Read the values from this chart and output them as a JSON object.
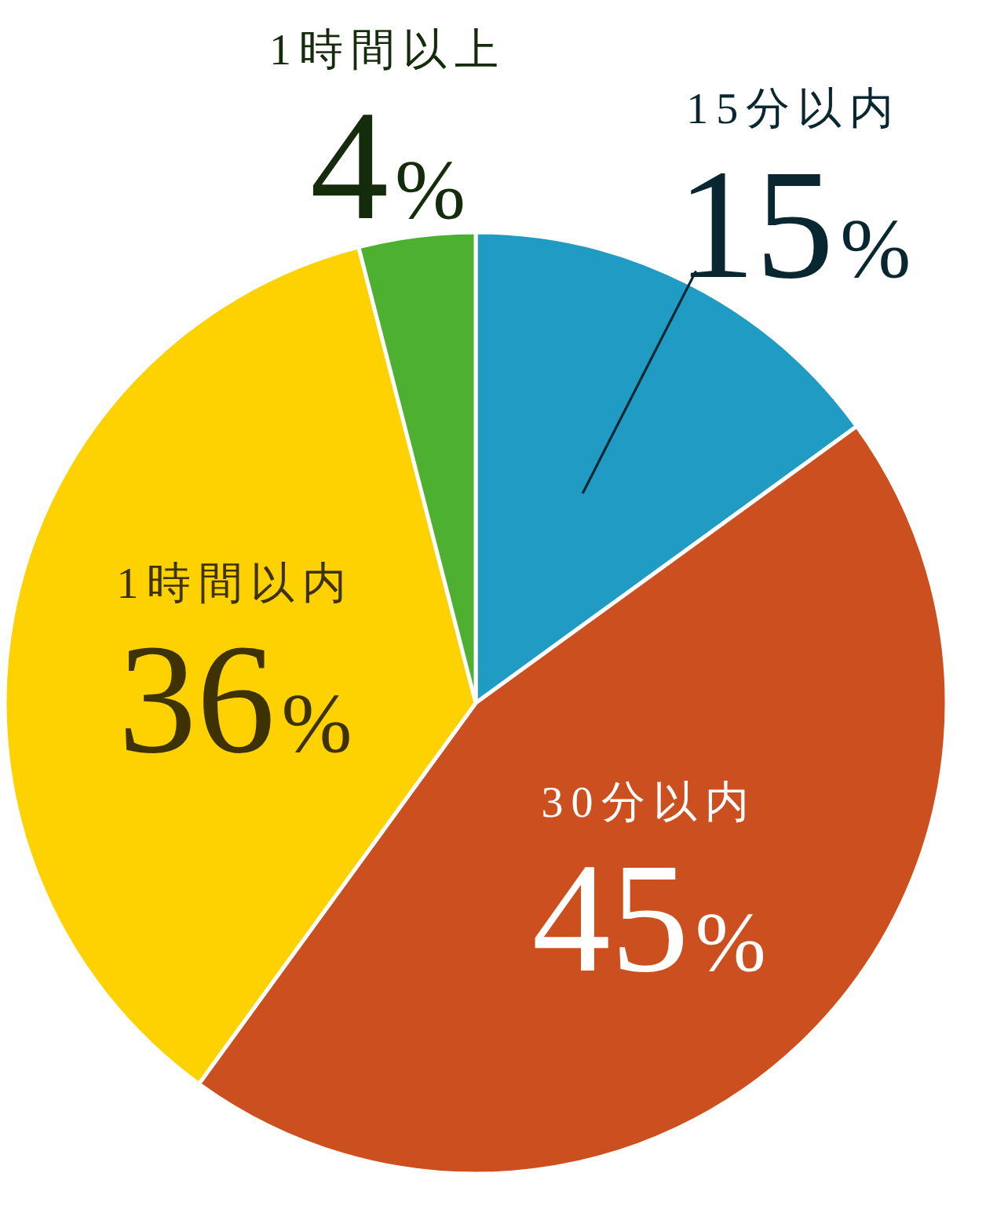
{
  "chart_data": {
    "type": "pie",
    "categories": [
      "15分以内",
      "30分以内",
      "1時間以内",
      "1時間以上"
    ],
    "values": [
      15,
      45,
      36,
      4
    ],
    "colors": [
      "#209bc3",
      "#cc4f1f",
      "#fdd200",
      "#4eb030"
    ],
    "value_labels": [
      "15%",
      "45%",
      "36%",
      "4%"
    ]
  }
}
